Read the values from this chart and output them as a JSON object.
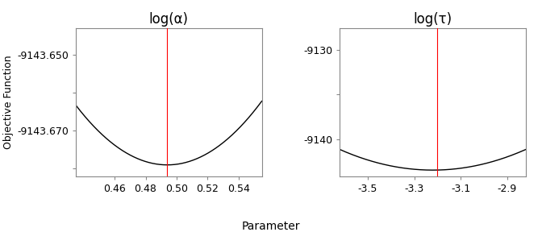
{
  "plot1": {
    "title": "log(α)",
    "ylabel": "Objective Function",
    "x_min": 0.435,
    "x_max": 0.555,
    "y_min": -9143.682,
    "y_max": -9143.643,
    "x_ticks": [
      0.46,
      0.48,
      0.5,
      0.52,
      0.54
    ],
    "y_ticks": [
      -9143.65,
      -9143.66,
      -9143.67,
      -9143.68
    ],
    "y_tick_labels": [
      "-9143.650",
      "",
      "-9143.670",
      ""
    ],
    "vline_x": 0.494,
    "curve_min_x": 0.494,
    "curve_min_y": -9143.679,
    "curve_coeff": 4.5
  },
  "plot2": {
    "title": "log(τ)",
    "x_min": -3.62,
    "x_max": -2.82,
    "y_min": -9144.2,
    "y_max": -9127.5,
    "x_ticks": [
      -3.5,
      -3.3,
      -3.1,
      -2.9
    ],
    "y_ticks": [
      -9130,
      -9135,
      -9140
    ],
    "y_tick_labels": [
      "-9130",
      "",
      "-9140"
    ],
    "vline_x": -3.2,
    "curve_min_x": -3.22,
    "curve_min_y": -9143.5,
    "curve_coeff": 14.5
  },
  "xlabel": "Parameter",
  "line_color": "#000000",
  "vline_color": "#FF0000",
  "bg_color": "#FFFFFF",
  "spine_color": "#888888",
  "tick_color": "#888888",
  "font_size": 10,
  "title_font_size": 12
}
